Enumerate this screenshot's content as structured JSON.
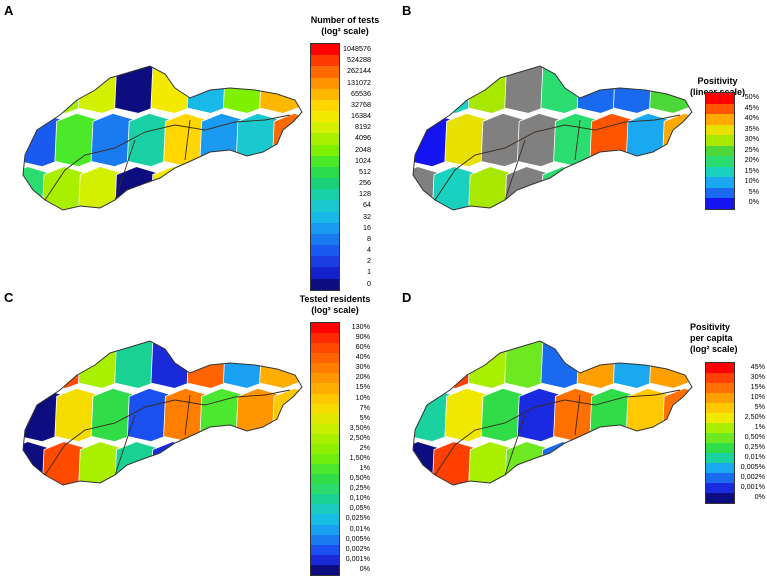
{
  "panels": [
    {
      "label": "A",
      "legend": {
        "title_line1": "Number of tests",
        "title_line2": "(log² scale)",
        "ticks": [
          "1048576",
          "524288",
          "262144",
          "131072",
          "65536",
          "32768",
          "16384",
          "8192",
          "4096",
          "2048",
          "1024",
          "512",
          "256",
          "128",
          "64",
          "32",
          "16",
          "8",
          "4",
          "2",
          "1",
          "0"
        ],
        "colors": [
          "#ff0000",
          "#ff3a00",
          "#ff6a00",
          "#ff9400",
          "#ffb800",
          "#ffd600",
          "#f2ea00",
          "#d4f000",
          "#a8f000",
          "#7ef000",
          "#4ce82a",
          "#2bdc4c",
          "#1ad178",
          "#18d1a6",
          "#1ac8d0",
          "#18b8e8",
          "#1a9af0",
          "#1a7af0",
          "#1a5af0",
          "#1a3ce0",
          "#1420c8",
          "#0d0d80"
        ]
      }
    },
    {
      "label": "B",
      "legend": {
        "title_line1": "Positivity",
        "title_line2": "(linear scale)",
        "ticks": [
          "50%",
          "45%",
          "40%",
          "35%",
          "30%",
          "25%",
          "20%",
          "15%",
          "10%",
          "5%",
          "0%"
        ],
        "colors": [
          "#ff0000",
          "#ff5500",
          "#ffaa00",
          "#e8e000",
          "#a8e800",
          "#4cd838",
          "#2bdc70",
          "#1ad1c0",
          "#1aa8f0",
          "#1a6af0",
          "#1414f0"
        ]
      }
    },
    {
      "label": "C",
      "legend": {
        "title_line1": "Tested residents",
        "title_line2": "(log² scale)",
        "ticks": [
          "130%",
          "90%",
          "60%",
          "40%",
          "30%",
          "20%",
          "15%",
          "10%",
          "7%",
          "5%",
          "3,50%",
          "2,50%",
          "2%",
          "1,50%",
          "1%",
          "0,50%",
          "0,25%",
          "0,10%",
          "0,05%",
          "0,025%",
          "0,01%",
          "0,005%",
          "0,002%",
          "0,001%",
          "0%"
        ],
        "colors": [
          "#ff0000",
          "#ff2a00",
          "#ff4a00",
          "#ff6400",
          "#ff7e00",
          "#ff9600",
          "#ffae00",
          "#ffc800",
          "#f4dc00",
          "#e0e800",
          "#c8ee00",
          "#a8f000",
          "#8ef000",
          "#70ee10",
          "#4ce830",
          "#30dc48",
          "#2bdc6c",
          "#1ad194",
          "#1acbc0",
          "#18bde4",
          "#1aa0f0",
          "#1a7af0",
          "#1a50f0",
          "#1a2ad8",
          "#0d0d80"
        ]
      }
    },
    {
      "label": "D",
      "legend": {
        "title_line1": "Positivity",
        "title_line2": "per capita",
        "title_line3": "(log² scale)",
        "ticks": [
          "45%",
          "30%",
          "15%",
          "10%",
          "5%",
          "2,50%",
          "1%",
          "0,50%",
          "0,25%",
          "0,01%",
          "0,005%",
          "0,002%",
          "0,001%",
          "0%"
        ],
        "colors": [
          "#ff0000",
          "#ff4000",
          "#ff7000",
          "#ffa000",
          "#ffc800",
          "#f0e800",
          "#a8f000",
          "#6ee820",
          "#30dc48",
          "#1ad1a0",
          "#1aa8f0",
          "#1a6af0",
          "#1a2ae0",
          "#0d0d80"
        ]
      }
    }
  ],
  "map_colors": {
    "A": [
      "#2bdc70",
      "#1ad1a6",
      "#7ef000",
      "#a8f000",
      "#ffd600",
      "#ffb800",
      "#d4f000",
      "#1a9af0",
      "#1a5af0",
      "#0d0d80",
      "#1ac8d0",
      "#4ce82a",
      "#f2ea00",
      "#ff6a00",
      "#1a7af0",
      "#18b8e8"
    ],
    "B": [
      "#808080",
      "#808080",
      "#1a6af0",
      "#1ad1c0",
      "#2bdc70",
      "#4cd838",
      "#a8e800",
      "#ff5500",
      "#1414f0",
      "#808080",
      "#1aa8f0",
      "#e8e000",
      "#2bdc70",
      "#ffaa00",
      "#808080",
      "#1a6af0"
    ],
    "C": [
      "#0d0d80",
      "#1a50f0",
      "#1aa0f0",
      "#ff4a00",
      "#ff7e00",
      "#ffae00",
      "#a8f000",
      "#4ce830",
      "#0d0d80",
      "#1ad194",
      "#ff9600",
      "#f4dc00",
      "#1a2ad8",
      "#ffc800",
      "#30dc48",
      "#ff6400"
    ],
    "D": [
      "#0d0d80",
      "#1a2ae0",
      "#1aa8f0",
      "#ff4000",
      "#ff7000",
      "#ffa000",
      "#a8f000",
      "#30dc48",
      "#1ad1a0",
      "#6ee820",
      "#ffc800",
      "#f0e800",
      "#1a6af0",
      "#ff7000",
      "#30dc48",
      "#ffa000"
    ]
  }
}
